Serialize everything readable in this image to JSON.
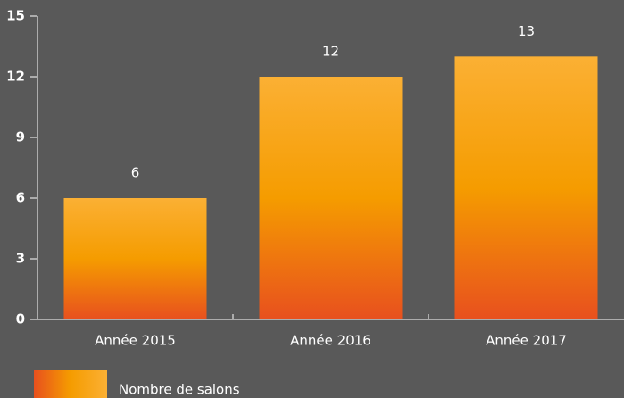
{
  "chart_data": {
    "type": "bar",
    "categories": [
      "Année 2015",
      "Année 2016",
      "Année 2017"
    ],
    "series": [
      {
        "name": "Nombre de salons",
        "color": "#f59c00",
        "gradient": [
          "#fbb034",
          "#f59c00",
          "#e8501e"
        ],
        "values": [
          6,
          12,
          13
        ]
      }
    ],
    "ylim": [
      0,
      15
    ],
    "yticks": [
      0,
      3,
      6,
      9,
      12,
      15
    ],
    "grid": false,
    "legend": "bottom-left"
  }
}
